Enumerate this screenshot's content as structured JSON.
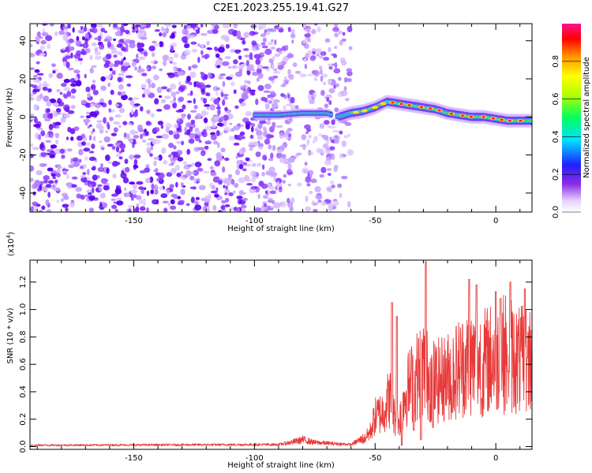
{
  "title": "C2E1.2023.255.19.41.G27",
  "chart_data": [
    {
      "type": "heatmap",
      "xlabel": "Height of straight line (km)",
      "ylabel": "Frequency (Hz)",
      "xlim": [
        -193,
        15
      ],
      "ylim": [
        -50,
        49
      ],
      "xticks": [
        -150,
        -100,
        -50,
        0
      ],
      "yticks": [
        -40,
        -20,
        0,
        20,
        40
      ],
      "xtick_labels": [
        "-150",
        "-100",
        "-50",
        "0"
      ],
      "ytick_labels": [
        "-40",
        "-20",
        "0",
        "20",
        "40"
      ],
      "colorbar": {
        "label": "Normalized spectral amplitude",
        "range": [
          0,
          1
        ],
        "ticks": [
          0,
          0.2,
          0.4,
          0.6,
          0.8
        ],
        "tick_labels": [
          "0.0",
          "0.2",
          "0.4",
          "0.6",
          "0.8"
        ]
      },
      "ridge": [
        {
          "x": -100,
          "y": 1
        },
        {
          "x": -90,
          "y": 1
        },
        {
          "x": -80,
          "y": 2
        },
        {
          "x": -70,
          "y": 2
        },
        {
          "x": -65,
          "y": 0
        },
        {
          "x": -60,
          "y": 2
        },
        {
          "x": -55,
          "y": 3
        },
        {
          "x": -50,
          "y": 5
        },
        {
          "x": -45,
          "y": 8
        },
        {
          "x": -40,
          "y": 7
        },
        {
          "x": -35,
          "y": 6
        },
        {
          "x": -30,
          "y": 5
        },
        {
          "x": -25,
          "y": 4
        },
        {
          "x": -20,
          "y": 2
        },
        {
          "x": -15,
          "y": 1
        },
        {
          "x": -10,
          "y": 0
        },
        {
          "x": -5,
          "y": 0
        },
        {
          "x": 0,
          "y": -1
        },
        {
          "x": 5,
          "y": -2
        },
        {
          "x": 10,
          "y": -2
        },
        {
          "x": 15,
          "y": -2
        }
      ]
    },
    {
      "type": "line",
      "xlabel": "Height of straight line (km)",
      "ylabel": "SNR (10 * v/v)",
      "y_multiplier": "(x10",
      "y_multiplier_exp": "4",
      "y_multiplier_close": ")",
      "xlim": [
        -193,
        15
      ],
      "ylim": [
        -0.02,
        1.36
      ],
      "xticks": [
        -150,
        -100,
        -50,
        0
      ],
      "yticks": [
        0.0,
        0.2,
        0.4,
        0.6,
        0.8,
        1.0,
        1.2
      ],
      "xtick_labels": [
        "-150",
        "-100",
        "-50",
        "0"
      ],
      "ytick_labels": [
        "0.0",
        "0.2",
        "0.4",
        "0.6",
        "0.8",
        "1.0",
        "1.2"
      ],
      "color": "#e83a3a",
      "envelope": [
        {
          "x": -193,
          "y": 0.01
        },
        {
          "x": -90,
          "y": 0.015
        },
        {
          "x": -85,
          "y": 0.03
        },
        {
          "x": -80,
          "y": 0.05
        },
        {
          "x": -75,
          "y": 0.03
        },
        {
          "x": -60,
          "y": 0.015
        },
        {
          "x": -55,
          "y": 0.06
        },
        {
          "x": -52,
          "y": 0.15
        },
        {
          "x": -50,
          "y": 0.3
        },
        {
          "x": -47,
          "y": 0.35
        },
        {
          "x": -44,
          "y": 0.5
        },
        {
          "x": -42,
          "y": 0.3
        },
        {
          "x": -40,
          "y": 0.25
        },
        {
          "x": -38,
          "y": 0.5
        },
        {
          "x": -36,
          "y": 0.6
        },
        {
          "x": -33,
          "y": 0.7
        },
        {
          "x": -30,
          "y": 0.8
        },
        {
          "x": -28,
          "y": 0.7
        },
        {
          "x": -25,
          "y": 0.65
        },
        {
          "x": -20,
          "y": 0.7
        },
        {
          "x": -15,
          "y": 0.8
        },
        {
          "x": -10,
          "y": 0.85
        },
        {
          "x": -5,
          "y": 0.85
        },
        {
          "x": 0,
          "y": 0.9
        },
        {
          "x": 5,
          "y": 0.95
        },
        {
          "x": 10,
          "y": 0.85
        },
        {
          "x": 15,
          "y": 0.9
        }
      ],
      "peaks": [
        {
          "x": -43,
          "y": 1.05
        },
        {
          "x": -41,
          "y": 0.95
        },
        {
          "x": -29,
          "y": 1.35
        },
        {
          "x": -11,
          "y": 1.22
        },
        {
          "x": -8,
          "y": 1.18
        },
        {
          "x": 0,
          "y": 1.13
        },
        {
          "x": 2,
          "y": 1.08
        },
        {
          "x": 6,
          "y": 1.2
        },
        {
          "x": 12,
          "y": 1.15
        }
      ],
      "dips": [
        {
          "x": -39,
          "y": 0.01
        },
        {
          "x": -34,
          "y": 0.12
        },
        {
          "x": -31,
          "y": 0.05
        },
        {
          "x": -26,
          "y": 0.14
        },
        {
          "x": -18,
          "y": 0.25
        },
        {
          "x": -6,
          "y": 0.35
        },
        {
          "x": 5,
          "y": 0.55
        },
        {
          "x": 13,
          "y": 0.65
        }
      ]
    }
  ]
}
